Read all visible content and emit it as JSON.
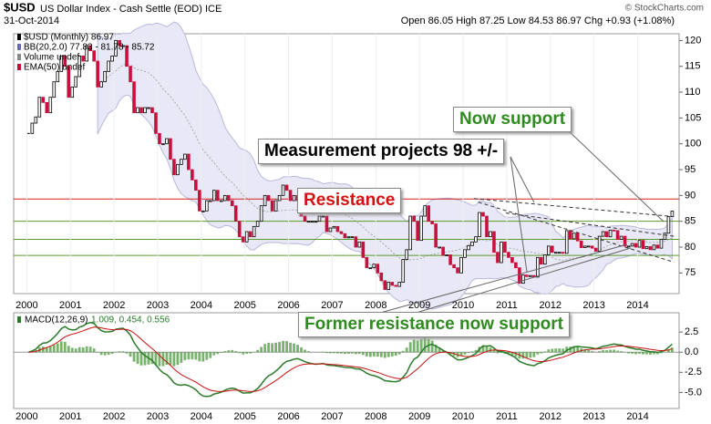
{
  "chart_data": {
    "type": "candlestick",
    "symbol": "$USD",
    "title": "US Dollar Index - Cash Settle (EOD) ICE",
    "date": "31-Oct-2014",
    "quote": "Open 86.05   High 87.25   Low 84.53   86.97   Chg +0.93 (+1.08%)",
    "credit": "© StockCharts.com",
    "legend": [
      "$USD (Monthly) 86.97",
      "BB(20,2.0) 77.83 - 81.78 - 85.72",
      "Volume undef",
      "EMA(50) undef"
    ],
    "legend_colors": [
      "#000000",
      "#6a6ab0",
      "#888888",
      "#c0103a"
    ],
    "up_color": "#000000",
    "down_color": "#c8103c",
    "band_color": "#e8e8f6",
    "close": [
      102.0,
      104.0,
      105.2,
      109.0,
      108.0,
      106.0,
      109.0,
      112.0,
      114.0,
      117.0,
      115.0,
      109.0,
      111.0,
      113.0,
      117.0,
      116.0,
      119.0,
      118.0,
      116.0,
      111.0,
      112.0,
      114.0,
      116.0,
      117.0,
      120.0,
      119.0,
      119.0,
      115.0,
      112.0,
      106.0,
      107.0,
      106.0,
      107.0,
      107.0,
      106.0,
      102.0,
      100.0,
      100.0,
      101.0,
      97.0,
      94.0,
      96.0,
      97.0,
      98.0,
      95.0,
      93.0,
      91.0,
      87.0,
      87.0,
      89.0,
      89.0,
      91.0,
      89.0,
      89.0,
      90.0,
      89.0,
      88.0,
      85.0,
      82.0,
      81.0,
      83.0,
      82.0,
      84.0,
      85.0,
      88.0,
      90.0,
      89.0,
      87.0,
      89.0,
      90.0,
      92.0,
      91.0,
      89.0,
      90.0,
      89.0,
      86.0,
      85.0,
      85.0,
      85.0,
      85.0,
      86.0,
      86.0,
      83.0,
      83.7,
      84.0,
      83.0,
      82.6,
      81.8,
      82.0,
      82.0,
      80.0,
      81.0,
      78.0,
      76.0,
      76.0,
      76.7,
      75.0,
      73.5,
      71.8,
      73.2,
      72.6,
      72.4,
      73.2,
      77.6,
      79.5,
      86.0,
      85.0,
      81.3,
      86.0,
      88.0,
      85.0,
      84.5,
      80.0,
      80.0,
      78.4,
      78.5,
      76.6,
      76.0,
      75.0,
      78.0,
      79.5,
      80.3,
      81.0,
      82.0,
      86.7,
      86.0,
      82.0,
      83.0,
      79.0,
      77.0,
      81.0,
      79.0,
      78.0,
      77.0,
      76.0,
      73.0,
      74.6,
      74.3,
      74.5,
      74.2,
      78.0,
      76.7,
      78.5,
      80.2,
      79.0,
      79.0,
      79.0,
      78.8,
      83.2,
      81.6,
      82.7,
      81.2,
      79.9,
      80.2,
      80.2,
      79.8,
      79.2,
      82.1,
      83.0,
      82.0,
      83.3,
      83.2,
      81.5,
      82.1,
      80.2,
      80.2,
      80.7,
      80.0,
      81.3,
      79.7,
      80.1,
      79.5,
      80.4,
      79.8,
      81.5,
      82.7,
      85.9,
      86.97
    ],
    "xlim": [
      1999.7,
      2014.95
    ],
    "xticks": [
      2000,
      2001,
      2002,
      2003,
      2004,
      2005,
      2006,
      2007,
      2008,
      2009,
      2010,
      2011,
      2012,
      2013,
      2014
    ],
    "ylim": [
      71,
      121.3
    ],
    "yticks": [
      75,
      80,
      85,
      90,
      95,
      100,
      105,
      110,
      115,
      120
    ],
    "levels": [
      {
        "value": 89.3,
        "color": "#d62020"
      },
      {
        "value": 85,
        "color": "#5a9a2a"
      },
      {
        "value": 81.5,
        "color": "#5a9a2a"
      },
      {
        "value": 78.4,
        "color": "#5a9a2a"
      }
    ],
    "trendlines": [
      {
        "x": [
          2010.25,
          2014.83
        ],
        "y": [
          89.4,
          85.9
        ]
      },
      {
        "x": [
          2010.35,
          2014.83
        ],
        "y": [
          88.7,
          77.1
        ]
      },
      {
        "x": [
          2010.98,
          2014.83
        ],
        "y": [
          86.6,
          82.1
        ]
      }
    ],
    "annotations": [
      {
        "text": "Now support",
        "color": "#2e8b1e"
      },
      {
        "text": "Measurement projects 98 +/-",
        "color": "#000000"
      },
      {
        "text": "Resistance",
        "color": "#d61010"
      },
      {
        "text": "Former resistance now support",
        "color": "#2e8b1e"
      }
    ],
    "macd": {
      "label": "MACD(12,26,9)",
      "readings": "1.009, 0.454, 0.556",
      "line_color": "#2a7a2a",
      "signal_color": "#c81010",
      "hist_color": "#4a9a3a",
      "ylim": [
        -7,
        4.9
      ],
      "yticks": [
        {
          "value": 2.5,
          "label": "2.5"
        },
        {
          "value": 0,
          "label": "0.0"
        },
        {
          "value": -2.5,
          "label": "-2.5"
        },
        {
          "value": -5,
          "label": "-5.0"
        }
      ]
    }
  }
}
